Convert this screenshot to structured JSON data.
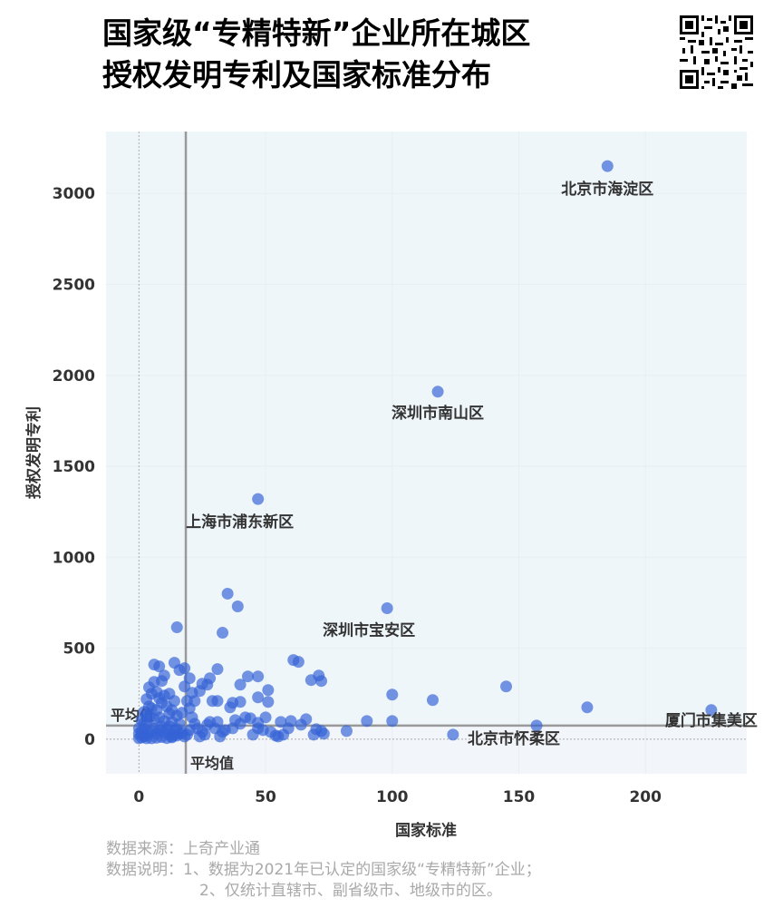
{
  "title": {
    "line1": "国家级“专精特新”企业所在城区",
    "line2": "授权发明专利及国家标准分布"
  },
  "qr_icon": "qr-code-icon",
  "colors": {
    "point": "#3563d6",
    "plot_bg_top": "#eef6fa",
    "plot_bg_bottom": "#f2f5fa",
    "mean_line": "#999999",
    "label": "#333333"
  },
  "chart_data": {
    "type": "scatter",
    "title": "",
    "xlabel": "国家标准",
    "ylabel": "授权发明专利",
    "xlim": [
      -13,
      240
    ],
    "ylim": [
      -190,
      3340
    ],
    "xticks": [
      0,
      50,
      100,
      150,
      200
    ],
    "yticks": [
      0,
      500,
      1000,
      1500,
      2000,
      2500,
      3000
    ],
    "grid": true,
    "mean": {
      "x": 18.5,
      "y": 75,
      "x_label": "平均值",
      "y_label": "平均值"
    },
    "labeled_points": [
      {
        "name": "北京市海淀区",
        "x": 185,
        "y": 3150
      },
      {
        "name": "深圳市南山区",
        "x": 118,
        "y": 1910
      },
      {
        "name": "上海市浦东新区",
        "x": 47,
        "y": 1320
      },
      {
        "name": "深圳市宝安区",
        "x": 98,
        "y": 720
      },
      {
        "name": "北京市怀柔区",
        "x": 157,
        "y": 75
      },
      {
        "name": "厦门市集美区",
        "x": 226,
        "y": 160
      }
    ],
    "points": [
      [
        185,
        3150
      ],
      [
        118,
        1910
      ],
      [
        47,
        1320
      ],
      [
        98,
        720
      ],
      [
        157,
        75
      ],
      [
        226,
        160
      ],
      [
        35,
        800
      ],
      [
        39,
        730
      ],
      [
        15,
        615
      ],
      [
        33,
        585
      ],
      [
        61,
        435
      ],
      [
        63,
        425
      ],
      [
        31,
        385
      ],
      [
        71,
        350
      ],
      [
        72,
        320
      ],
      [
        68,
        325
      ],
      [
        47,
        345
      ],
      [
        43,
        345
      ],
      [
        37,
        200
      ],
      [
        40,
        205
      ],
      [
        29,
        210
      ],
      [
        31,
        210
      ],
      [
        22,
        210
      ],
      [
        21,
        255
      ],
      [
        24,
        265
      ],
      [
        27,
        300
      ],
      [
        20,
        335
      ],
      [
        25,
        305
      ],
      [
        28,
        335
      ],
      [
        40,
        300
      ],
      [
        47,
        230
      ],
      [
        51,
        270
      ],
      [
        51,
        205
      ],
      [
        44,
        115
      ],
      [
        66,
        110
      ],
      [
        64,
        80
      ],
      [
        56,
        95
      ],
      [
        52,
        40
      ],
      [
        54,
        20
      ],
      [
        47,
        90
      ],
      [
        47,
        60
      ],
      [
        45,
        25
      ],
      [
        49,
        50
      ],
      [
        50,
        120
      ],
      [
        36,
        175
      ],
      [
        34,
        50
      ],
      [
        30,
        60
      ],
      [
        31,
        95
      ],
      [
        33,
        40
      ],
      [
        32,
        15
      ],
      [
        37,
        60
      ],
      [
        38,
        105
      ],
      [
        42,
        120
      ],
      [
        40,
        85
      ],
      [
        27,
        80
      ],
      [
        28,
        95
      ],
      [
        25,
        40
      ],
      [
        24,
        15
      ],
      [
        23,
        60
      ],
      [
        26,
        25
      ],
      [
        18,
        290
      ],
      [
        19,
        210
      ],
      [
        20,
        170
      ],
      [
        21,
        120
      ],
      [
        22,
        85
      ],
      [
        20,
        50
      ],
      [
        19,
        25
      ],
      [
        17,
        145
      ],
      [
        16,
        85
      ],
      [
        15,
        55
      ],
      [
        14,
        25
      ],
      [
        13,
        95
      ],
      [
        12,
        140
      ],
      [
        11,
        180
      ],
      [
        10,
        240
      ],
      [
        9,
        200
      ],
      [
        8,
        225
      ],
      [
        7,
        160
      ],
      [
        6,
        110
      ],
      [
        5,
        170
      ],
      [
        4,
        125
      ],
      [
        3,
        85
      ],
      [
        2,
        55
      ],
      [
        1,
        25
      ],
      [
        0,
        5
      ],
      [
        1,
        10
      ],
      [
        2,
        15
      ],
      [
        3,
        20
      ],
      [
        4,
        35
      ],
      [
        5,
        45
      ],
      [
        6,
        60
      ],
      [
        7,
        30
      ],
      [
        8,
        50
      ],
      [
        9,
        70
      ],
      [
        10,
        40
      ],
      [
        11,
        55
      ],
      [
        12,
        25
      ],
      [
        13,
        15
      ],
      [
        3,
        5
      ],
      [
        5,
        5
      ],
      [
        7,
        8
      ],
      [
        9,
        12
      ],
      [
        11,
        6
      ],
      [
        13,
        10
      ],
      [
        15,
        20
      ],
      [
        17,
        35
      ],
      [
        6,
        410
      ],
      [
        8,
        400
      ],
      [
        14,
        420
      ],
      [
        16,
        380
      ],
      [
        18,
        390
      ],
      [
        10,
        350
      ],
      [
        6,
        315
      ],
      [
        9,
        320
      ],
      [
        12,
        250
      ],
      [
        14,
        210
      ],
      [
        4,
        285
      ],
      [
        3,
        220
      ],
      [
        5,
        250
      ],
      [
        7,
        260
      ],
      [
        2,
        150
      ],
      [
        1,
        105
      ],
      [
        0,
        60
      ],
      [
        0,
        30
      ],
      [
        1,
        45
      ],
      [
        2,
        90
      ],
      [
        3,
        130
      ],
      [
        4,
        180
      ],
      [
        8,
        120
      ],
      [
        10,
        100
      ],
      [
        12,
        70
      ],
      [
        14,
        50
      ],
      [
        16,
        30
      ],
      [
        18,
        15
      ],
      [
        15,
        130
      ],
      [
        13,
        160
      ],
      [
        69,
        25
      ],
      [
        70,
        55
      ],
      [
        72,
        45
      ],
      [
        73,
        30
      ],
      [
        82,
        45
      ],
      [
        90,
        100
      ],
      [
        100,
        100
      ],
      [
        100,
        245
      ],
      [
        116,
        215
      ],
      [
        124,
        25
      ],
      [
        145,
        290
      ],
      [
        177,
        175
      ],
      [
        59,
        60
      ],
      [
        57,
        25
      ],
      [
        60,
        100
      ],
      [
        55,
        15
      ]
    ]
  },
  "footer": {
    "source": "数据来源：上奇产业通",
    "note1": "数据说明：1、数据为2021年已认定的国家级“专精特新”企业；",
    "note2": "2、仅统计直辖市、副省级市、地级市的区。"
  }
}
